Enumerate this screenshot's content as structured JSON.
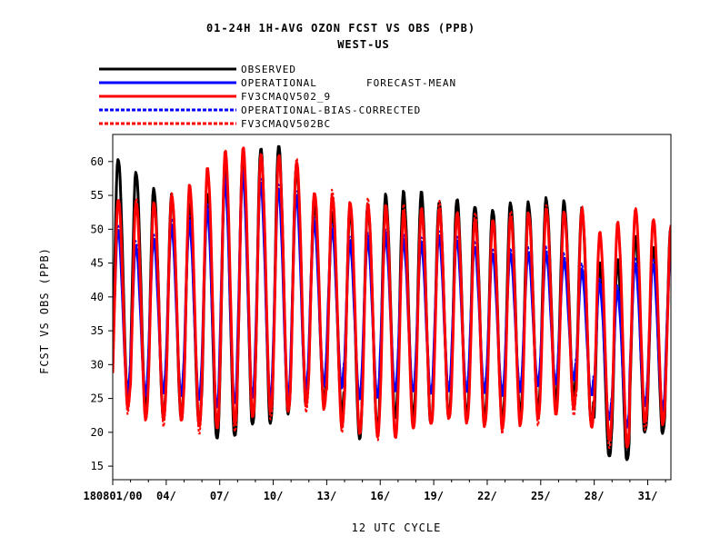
{
  "header": {
    "title_line1": "01-24H    1H-AVG OZON FCST VS OBS (PPB)",
    "title_line2": "WEST-US"
  },
  "legend": {
    "label": "FORECAST-MEAN",
    "items": [
      {
        "name": "OBSERVED",
        "color": "#000000",
        "style": "solid"
      },
      {
        "name": "OPERATIONAL",
        "color": "#0000ff",
        "style": "solid"
      },
      {
        "name": "FV3CMAQV502_9",
        "color": "#ff0000",
        "style": "solid"
      },
      {
        "name": "OPERATIONAL-BIAS-CORRECTED",
        "color": "#0000ff",
        "style": "dashed"
      },
      {
        "name": "FV3CMAQV502BC",
        "color": "#ff0000",
        "style": "dashed"
      }
    ]
  },
  "chart_data": {
    "type": "line",
    "title": "01-24H    1H-AVG OZON FCST VS OBS (PPB)",
    "subtitle": "WEST-US",
    "xlabel": "12 UTC CYCLE",
    "ylabel": "FCST VS OBS (PPB)",
    "ylim": [
      13,
      64
    ],
    "xlim": [
      1,
      32.3
    ],
    "y_ticks": [
      15,
      20,
      25,
      30,
      35,
      40,
      45,
      50,
      55,
      60
    ],
    "x_ticks": [
      {
        "day": 1,
        "label": "180801/00"
      },
      {
        "day": 4,
        "label": "04/"
      },
      {
        "day": 7,
        "label": "07/"
      },
      {
        "day": 10,
        "label": "10/"
      },
      {
        "day": 13,
        "label": "13/"
      },
      {
        "day": 16,
        "label": "16/"
      },
      {
        "day": 19,
        "label": "19/"
      },
      {
        "day": 22,
        "label": "22/"
      },
      {
        "day": 25,
        "label": "25/"
      },
      {
        "day": 28,
        "label": "28/"
      },
      {
        "day": 31,
        "label": "31/"
      }
    ],
    "x_unit_note": "day of August 2018",
    "daily": {
      "day": [
        1,
        2,
        3,
        4,
        5,
        6,
        7,
        8,
        9,
        10,
        11,
        12,
        13,
        14,
        15,
        16,
        17,
        18,
        19,
        20,
        21,
        22,
        23,
        24,
        25,
        26,
        27,
        28,
        29,
        30,
        31,
        32
      ],
      "OBSERVED_max": [
        60.5,
        58.5,
        56,
        55,
        53.5,
        55,
        59,
        61,
        62,
        62.5,
        59.5,
        54,
        52.5,
        53,
        53.5,
        55,
        55.5,
        55.5,
        54,
        54.5,
        53.5,
        53,
        54,
        54,
        54.5,
        54,
        53,
        45,
        45.5,
        49,
        47.5,
        50.5
      ],
      "OBSERVED_min": [
        25,
        24,
        22,
        22,
        21.5,
        19,
        19,
        21,
        21,
        22.5,
        24,
        24.5,
        23.5,
        19,
        20,
        22,
        22.5,
        21,
        22.5,
        22.5,
        22,
        21.5,
        22.5,
        23,
        24.5,
        26,
        22,
        16.5,
        15,
        20,
        19.5,
        22
      ],
      "OPERATIONAL_max": [
        50,
        47.5,
        48.5,
        50.5,
        51,
        53,
        57,
        58,
        57,
        56,
        55,
        51,
        50,
        48,
        48.5,
        49,
        48.5,
        48,
        49,
        48.5,
        47.5,
        46.5,
        46.5,
        46.5,
        46.5,
        45.5,
        44,
        42,
        41,
        45,
        45,
        47
      ],
      "OPERATIONAL_min": [
        26,
        25.5,
        26,
        25.5,
        25,
        23.5,
        24,
        25,
        25,
        25,
        26,
        27,
        27,
        25,
        25,
        26,
        26,
        25.5,
        26,
        26,
        26,
        25.5,
        26,
        27,
        27,
        28,
        26,
        22,
        20,
        24,
        23,
        24.5
      ],
      "FV3_max": [
        54.5,
        54,
        54,
        55,
        56.5,
        59,
        61.5,
        62,
        61,
        61,
        60,
        55.5,
        55,
        54,
        53.5,
        53.5,
        52.5,
        53,
        53,
        52.5,
        51.5,
        51.5,
        52,
        52.5,
        53,
        52.5,
        53,
        49.5,
        51,
        53,
        51.5,
        50.5
      ],
      "FV3_min": [
        24,
        22,
        22,
        22,
        21,
        20.5,
        21,
        22,
        23,
        23,
        24,
        24,
        21,
        20,
        19.5,
        19,
        20.5,
        21,
        22,
        21.5,
        21,
        20.5,
        21,
        22,
        22.5,
        24,
        21,
        19,
        17,
        21.5,
        21,
        22
      ]
    },
    "series": [
      {
        "name": "OBSERVED"
      },
      {
        "name": "OPERATIONAL"
      },
      {
        "name": "FV3CMAQV502_9"
      },
      {
        "name": "OPERATIONAL-BIAS-CORRECTED"
      },
      {
        "name": "FV3CMAQV502BC"
      }
    ]
  }
}
